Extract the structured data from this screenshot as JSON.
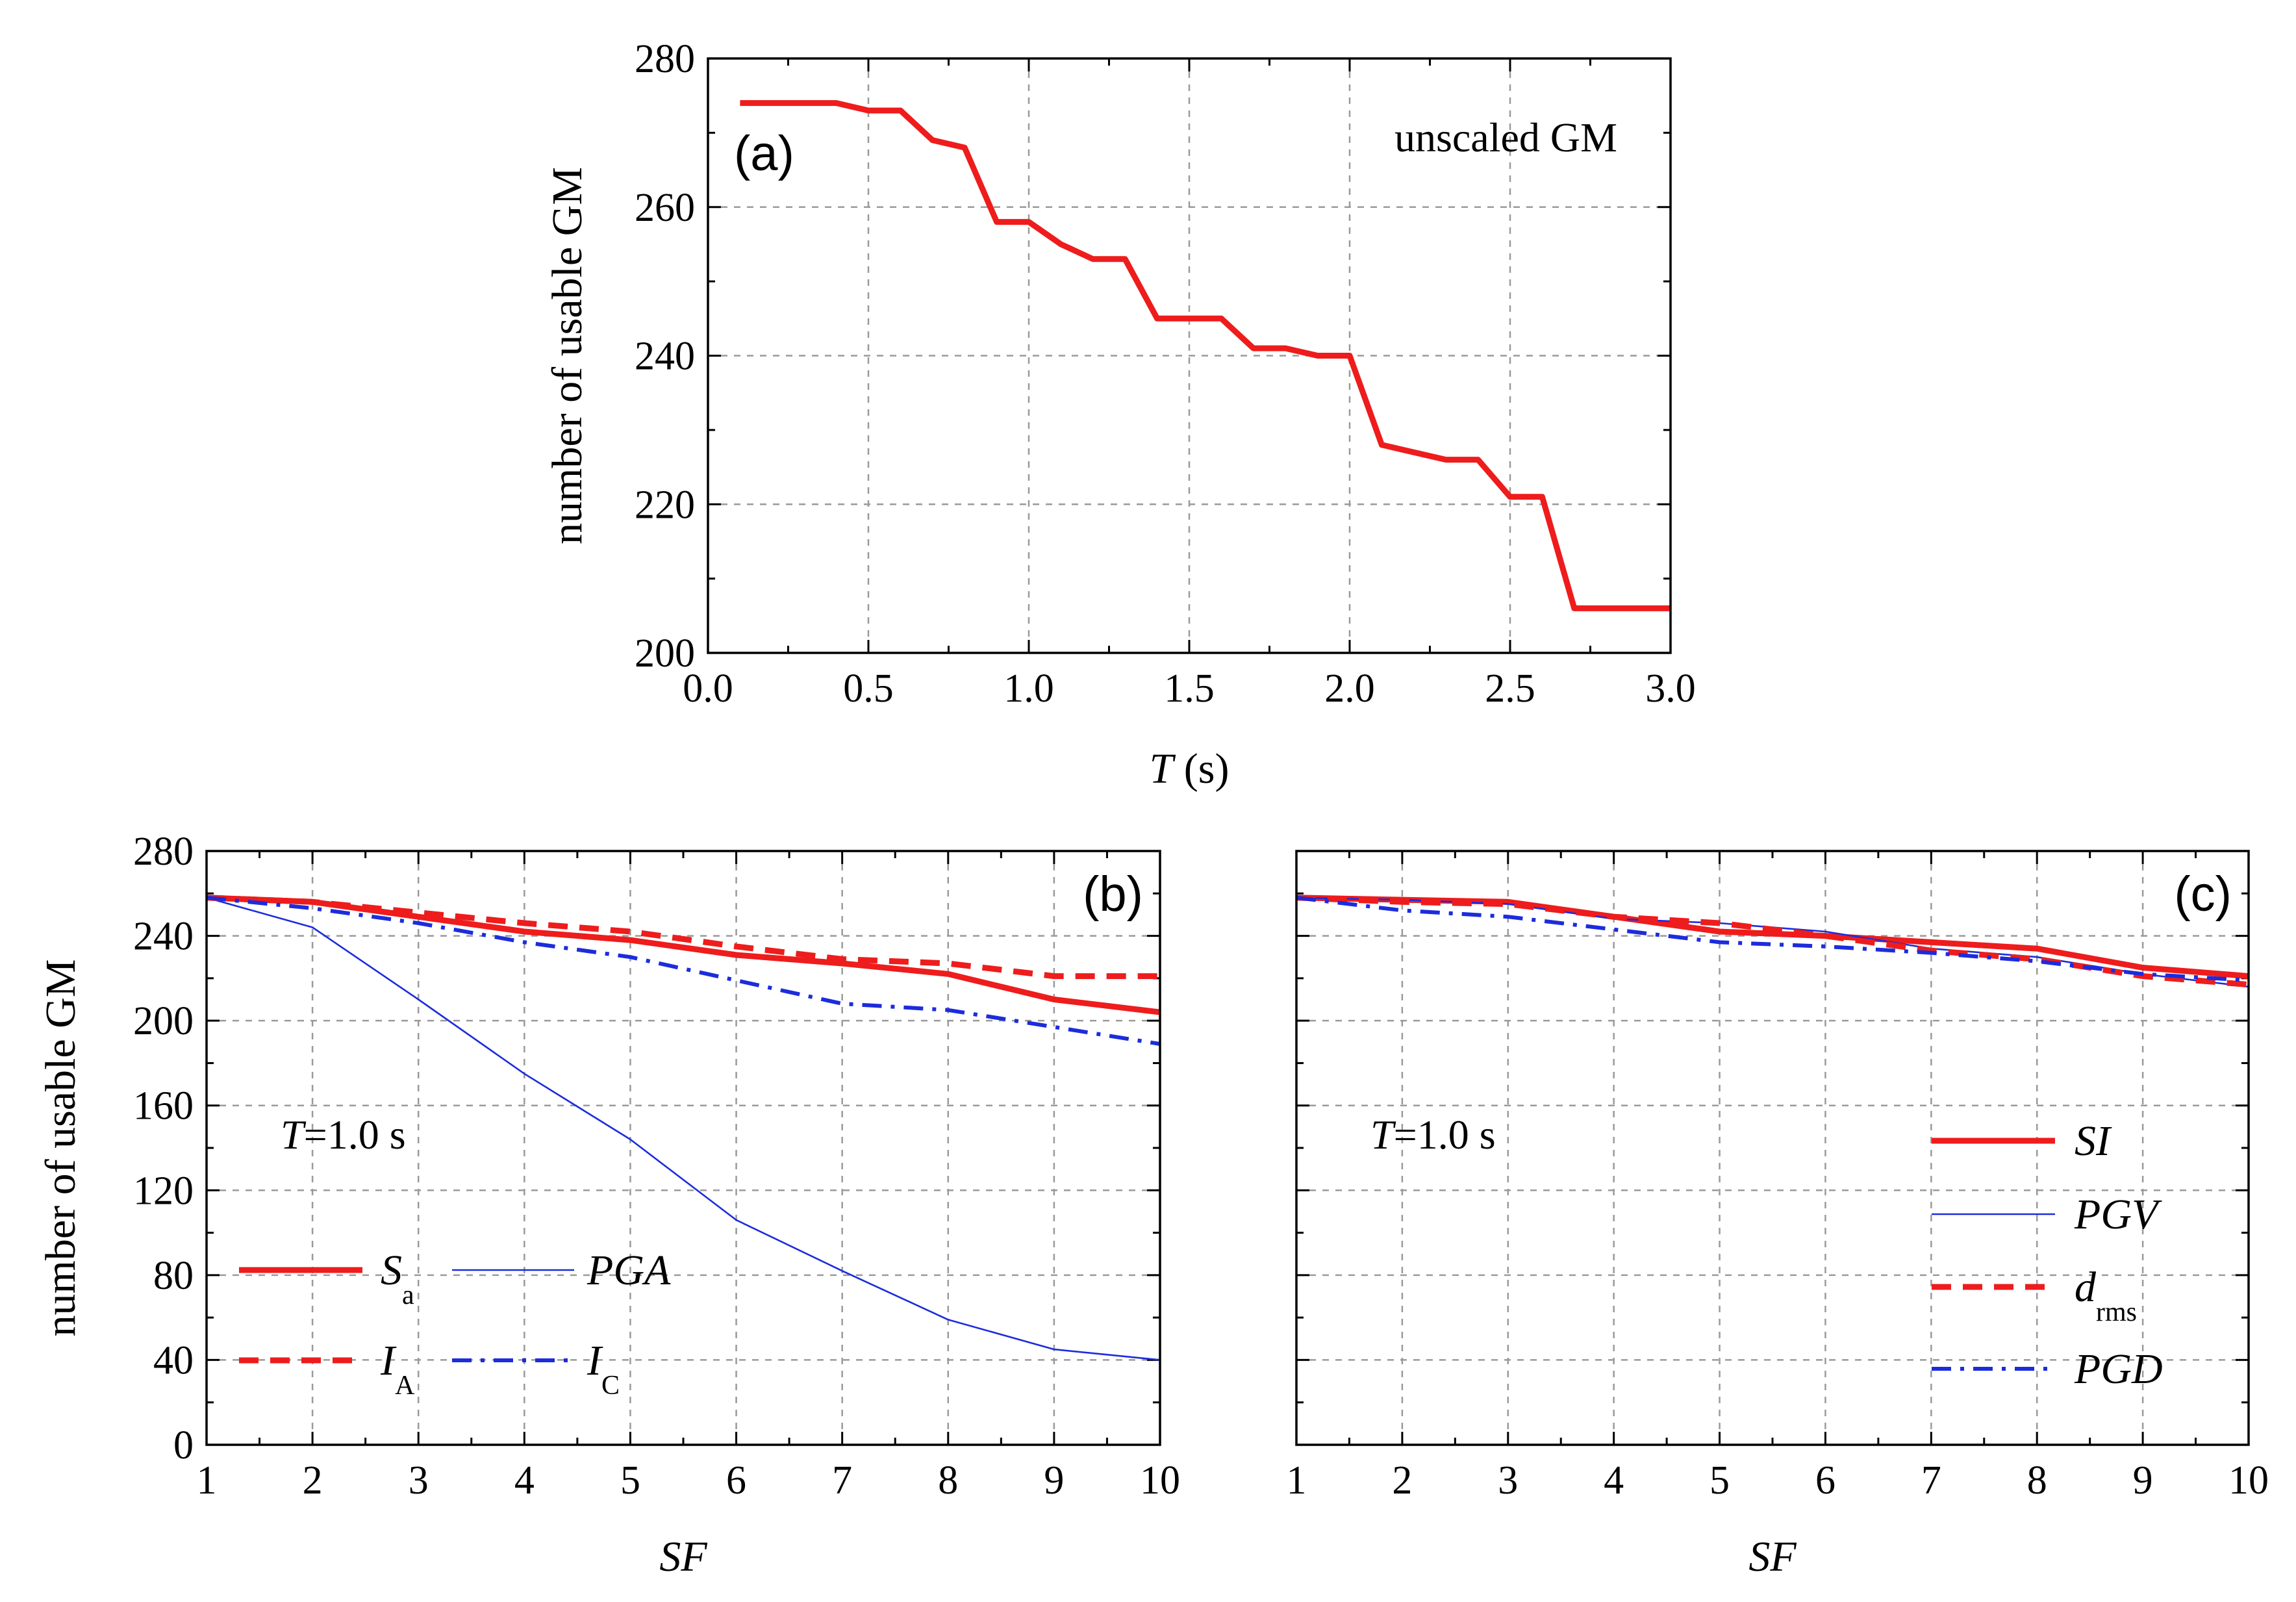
{
  "chart_data": [
    {
      "id": "a",
      "type": "line",
      "panel_label": "(a)",
      "annotation": "unscaled GM",
      "xlabel_italic": "T",
      "xlabel_rest": " (s)",
      "ylabel": "number of usable GM",
      "xlim": [
        0.0,
        3.0
      ],
      "ylim": [
        200,
        280
      ],
      "x_ticks": [
        0.0,
        0.5,
        1.0,
        1.5,
        2.0,
        2.5,
        3.0
      ],
      "x_tick_labels": [
        "0.0",
        "0.5",
        "1.0",
        "1.5",
        "2.0",
        "2.5",
        "3.0"
      ],
      "y_ticks": [
        200,
        220,
        240,
        260,
        280
      ],
      "y_tick_labels": [
        "200",
        "220",
        "240",
        "260",
        "280"
      ],
      "grid": true,
      "series": [
        {
          "name": "unscaled GM",
          "color": "#ee1c1c",
          "style": "solid",
          "width": "thick",
          "x": [
            0.1,
            0.4,
            0.5,
            0.6,
            0.7,
            0.8,
            0.9,
            1.0,
            1.1,
            1.2,
            1.3,
            1.4,
            1.5,
            1.6,
            1.7,
            1.8,
            1.9,
            2.0,
            2.1,
            2.2,
            2.3,
            2.4,
            2.5,
            2.6,
            2.7,
            2.8,
            3.0
          ],
          "values": [
            274,
            274,
            273,
            273,
            269,
            268,
            258,
            258,
            255,
            253,
            253,
            245,
            245,
            245,
            241,
            241,
            240,
            240,
            228,
            227,
            226,
            226,
            221,
            221,
            206,
            206,
            206
          ]
        }
      ]
    },
    {
      "id": "b",
      "type": "line",
      "panel_label": "(b)",
      "annotation_italic": "T",
      "annotation_rest": "=1.0 s",
      "xlabel": "SF",
      "ylabel": "number of usable GM",
      "xlim": [
        1,
        10
      ],
      "ylim": [
        0,
        280
      ],
      "x_ticks": [
        1,
        2,
        3,
        4,
        5,
        6,
        7,
        8,
        9,
        10
      ],
      "x_tick_labels": [
        "1",
        "2",
        "3",
        "4",
        "5",
        "6",
        "7",
        "8",
        "9",
        "10"
      ],
      "y_ticks": [
        0,
        40,
        80,
        120,
        160,
        200,
        240,
        280
      ],
      "y_tick_labels": [
        "0",
        "40",
        "80",
        "120",
        "160",
        "200",
        "240",
        "280"
      ],
      "grid": true,
      "legend_position": "bottom-left",
      "x": [
        1,
        2,
        3,
        4,
        5,
        6,
        7,
        8,
        9,
        10
      ],
      "series": [
        {
          "name": "S",
          "sub": "a",
          "color": "#ee1c1c",
          "style": "solid",
          "width": "thick",
          "values": [
            258,
            256,
            249,
            242,
            238,
            231,
            227,
            222,
            210,
            204
          ]
        },
        {
          "name": "PGA",
          "sub": "",
          "color": "#1c2cdc",
          "style": "solid",
          "width": "thin",
          "values": [
            258,
            244,
            210,
            175,
            144,
            106,
            82,
            59,
            45,
            40
          ]
        },
        {
          "name": "I",
          "sub": "A",
          "color": "#ee1c1c",
          "style": "dashed",
          "width": "thick",
          "values": [
            258,
            256,
            251,
            246,
            242,
            235,
            229,
            227,
            221,
            221
          ]
        },
        {
          "name": "I",
          "sub": "C",
          "color": "#1c2cdc",
          "style": "dashdot",
          "width": "medium",
          "values": [
            258,
            253,
            246,
            237,
            230,
            219,
            208,
            205,
            197,
            189
          ]
        }
      ]
    },
    {
      "id": "c",
      "type": "line",
      "panel_label": "(c)",
      "annotation_italic": "T",
      "annotation_rest": "=1.0 s",
      "xlabel": "SF",
      "ylabel": "",
      "xlim": [
        1,
        10
      ],
      "ylim": [
        0,
        280
      ],
      "x_ticks": [
        1,
        2,
        3,
        4,
        5,
        6,
        7,
        8,
        9,
        10
      ],
      "x_tick_labels": [
        "1",
        "2",
        "3",
        "4",
        "5",
        "6",
        "7",
        "8",
        "9",
        "10"
      ],
      "y_ticks": [
        0,
        40,
        80,
        120,
        160,
        200,
        240,
        280
      ],
      "y_tick_labels": [],
      "grid": true,
      "legend_position": "right",
      "x": [
        1,
        2,
        3,
        4,
        5,
        6,
        7,
        8,
        9,
        10
      ],
      "series": [
        {
          "name": "SI",
          "sub": "",
          "color": "#ee1c1c",
          "style": "solid",
          "width": "thick",
          "values": [
            258,
            257,
            256,
            249,
            242,
            240,
            237,
            234,
            225,
            221
          ]
        },
        {
          "name": "PGV",
          "sub": "",
          "color": "#1c2cdc",
          "style": "solid",
          "width": "thin",
          "values": [
            258,
            257,
            255,
            248,
            246,
            242,
            234,
            230,
            222,
            216
          ]
        },
        {
          "name": "d",
          "sub": "rms",
          "color": "#ee1c1c",
          "style": "dashed",
          "width": "thick",
          "values": [
            258,
            256,
            255,
            249,
            246,
            240,
            233,
            229,
            221,
            217
          ]
        },
        {
          "name": "PGD",
          "sub": "",
          "color": "#1c2cdc",
          "style": "dashdot",
          "width": "medium",
          "values": [
            258,
            252,
            249,
            243,
            237,
            235,
            232,
            228,
            222,
            219
          ]
        }
      ]
    }
  ]
}
